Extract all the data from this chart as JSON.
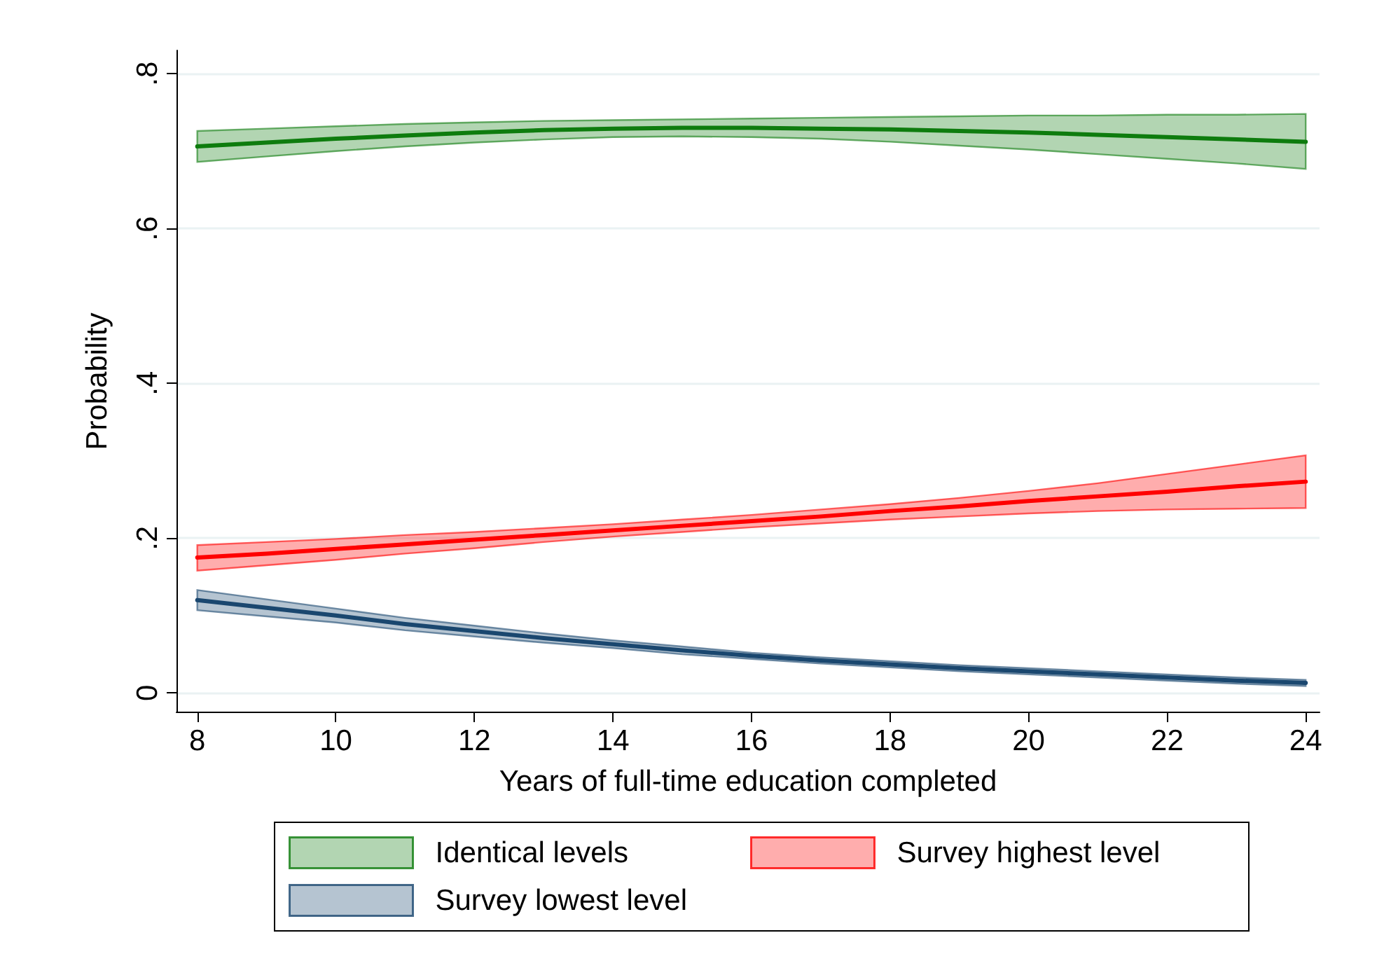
{
  "chart_data": {
    "type": "line",
    "xlabel": "Years of full-time education completed",
    "ylabel": "Probability",
    "x": [
      8,
      9,
      10,
      11,
      12,
      13,
      14,
      15,
      16,
      17,
      18,
      19,
      20,
      21,
      22,
      23,
      24
    ],
    "series": [
      {
        "name": "Identical levels",
        "color": "#0e7c0e",
        "values": [
          0.706,
          0.711,
          0.716,
          0.72,
          0.724,
          0.727,
          0.729,
          0.73,
          0.73,
          0.729,
          0.728,
          0.726,
          0.724,
          0.721,
          0.718,
          0.715,
          0.712
        ],
        "lower": [
          0.686,
          0.693,
          0.7,
          0.706,
          0.711,
          0.715,
          0.718,
          0.719,
          0.718,
          0.716,
          0.712,
          0.707,
          0.702,
          0.696,
          0.69,
          0.684,
          0.677
        ],
        "upper": [
          0.726,
          0.729,
          0.732,
          0.735,
          0.737,
          0.739,
          0.74,
          0.741,
          0.742,
          0.743,
          0.744,
          0.745,
          0.746,
          0.746,
          0.747,
          0.747,
          0.748
        ]
      },
      {
        "name": "Survey highest level",
        "color": "#ff0000",
        "values": [
          0.175,
          0.18,
          0.186,
          0.192,
          0.198,
          0.204,
          0.21,
          0.216,
          0.222,
          0.228,
          0.235,
          0.241,
          0.248,
          0.254,
          0.26,
          0.267,
          0.273
        ],
        "lower": [
          0.158,
          0.165,
          0.172,
          0.18,
          0.187,
          0.195,
          0.202,
          0.208,
          0.214,
          0.219,
          0.224,
          0.228,
          0.232,
          0.235,
          0.237,
          0.238,
          0.239
        ],
        "upper": [
          0.191,
          0.195,
          0.199,
          0.204,
          0.208,
          0.213,
          0.218,
          0.224,
          0.23,
          0.237,
          0.244,
          0.252,
          0.261,
          0.271,
          0.283,
          0.295,
          0.307
        ]
      },
      {
        "name": "Survey lowest level",
        "color": "#1a476f",
        "values": [
          0.12,
          0.11,
          0.1,
          0.089,
          0.08,
          0.071,
          0.063,
          0.055,
          0.048,
          0.042,
          0.037,
          0.032,
          0.028,
          0.024,
          0.02,
          0.016,
          0.013
        ],
        "lower": [
          0.107,
          0.099,
          0.091,
          0.081,
          0.073,
          0.065,
          0.058,
          0.05,
          0.044,
          0.038,
          0.033,
          0.028,
          0.024,
          0.02,
          0.016,
          0.012,
          0.009
        ],
        "upper": [
          0.133,
          0.121,
          0.109,
          0.097,
          0.087,
          0.077,
          0.068,
          0.06,
          0.052,
          0.046,
          0.041,
          0.036,
          0.032,
          0.028,
          0.024,
          0.02,
          0.017
        ]
      }
    ],
    "xlim": [
      7.7,
      24.2
    ],
    "ylim": [
      -0.025,
      0.83
    ],
    "xticks": [
      8,
      10,
      12,
      14,
      16,
      18,
      20,
      22,
      24
    ],
    "yticks": [
      0,
      {
        "value": 0.2,
        "label": ".2"
      },
      {
        "value": 0.4,
        "label": ".4"
      },
      {
        "value": 0.6,
        "label": ".6"
      },
      {
        "value": 0.8,
        "label": ".8"
      }
    ],
    "grid": "y",
    "legend": "bottom",
    "marker": "none",
    "line_style": "solid"
  }
}
